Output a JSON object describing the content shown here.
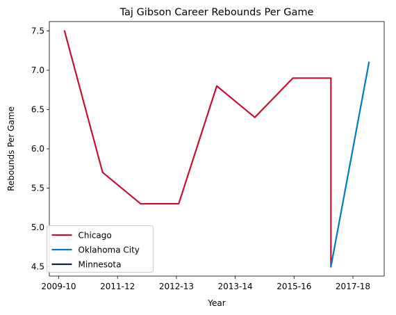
{
  "chart_data": {
    "type": "line",
    "title": "Taj Gibson Career Rebounds Per Game",
    "xlabel": "Year",
    "ylabel": "Rebounds Per Game",
    "x_tick_labels": [
      "2009-10",
      "2011-12",
      "2012-13",
      "2013-14",
      "2015-16",
      "2017-18"
    ],
    "y_ticks": [
      4.5,
      5.0,
      5.5,
      6.0,
      6.5,
      7.0,
      7.5
    ],
    "y_tick_labels": [
      "4.5",
      "5.0",
      "5.5",
      "6.0",
      "6.5",
      "7.0",
      "7.5"
    ],
    "xlim": [
      -0.4,
      8.4
    ],
    "ylim": [
      4.38,
      7.62
    ],
    "grid": false,
    "legend_position": "lower-left",
    "series": [
      {
        "name": "Chicago",
        "color": "#c8102e",
        "x": [
          0,
          1,
          2,
          3,
          4,
          5,
          6,
          7,
          7
        ],
        "y": [
          7.5,
          5.7,
          5.3,
          5.3,
          6.8,
          6.4,
          6.9,
          6.9,
          4.5
        ]
      },
      {
        "name": "Oklahoma City",
        "color": "#007ac1",
        "x": [
          7,
          8
        ],
        "y": [
          4.5,
          7.1
        ]
      },
      {
        "name": "Minnesota",
        "color": "#0c2340",
        "x": [],
        "y": []
      }
    ]
  }
}
